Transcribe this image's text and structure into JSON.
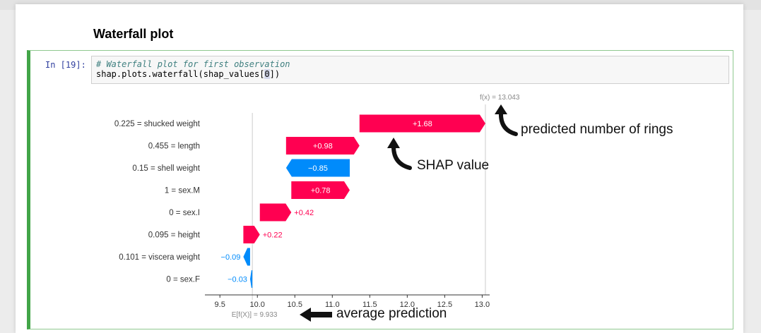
{
  "notebook": {
    "heading": "Waterfall plot",
    "prompt": "In [19]:",
    "code_comment": "# Waterfall plot for first observation",
    "code_prefix": "shap.plots.waterfall(shap_values[",
    "code_index": "0",
    "code_suffix": "])"
  },
  "annotations": {
    "predicted": "predicted number of rings",
    "shap": "SHAP value",
    "average": "average prediction"
  },
  "chart_data": {
    "type": "waterfall",
    "fx_label": "f(x) = 13.043",
    "fx_value": 13.043,
    "efx_label": "E[f(X)] = 9.933",
    "base_value": 9.933,
    "xlim": [
      9.3,
      13.1
    ],
    "xticks": [
      "9.5",
      "10.0",
      "10.5",
      "11.0",
      "11.5",
      "12.0",
      "12.5",
      "13.0"
    ],
    "features": [
      {
        "label": "0.225 = shucked weight",
        "value": 1.68,
        "text": "+1.68"
      },
      {
        "label": "0.455 = length",
        "value": 0.98,
        "text": "+0.98"
      },
      {
        "label": "0.15 = shell weight",
        "value": -0.85,
        "text": "−0.85"
      },
      {
        "label": "1 = sex.M",
        "value": 0.78,
        "text": "+0.78"
      },
      {
        "label": "0 = sex.I",
        "value": 0.42,
        "text": "+0.42"
      },
      {
        "label": "0.095 = height",
        "value": 0.22,
        "text": "+0.22"
      },
      {
        "label": "0.101 = viscera weight",
        "value": -0.09,
        "text": "−0.09"
      },
      {
        "label": "0 = sex.F",
        "value": -0.03,
        "text": "−0.03"
      }
    ],
    "colors": {
      "positive": "#ff0051",
      "negative": "#008bfb",
      "text": "#333333",
      "axis": "#333333",
      "faint": "#888888"
    }
  }
}
